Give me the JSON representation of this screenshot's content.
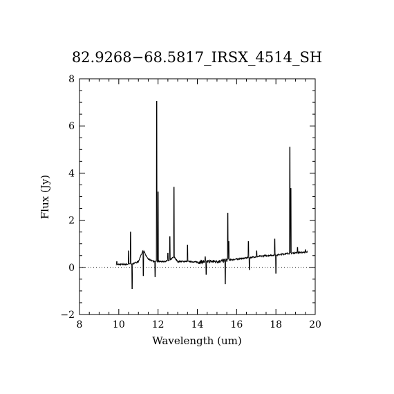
{
  "chart_data": {
    "type": "line",
    "title": "82.9268−68.5817_IRSX_4514_SH",
    "xlabel": "Wavelength (um)",
    "ylabel": "Flux (Jy)",
    "xlim": [
      8,
      20
    ],
    "ylim": [
      -2,
      8
    ],
    "x_ticks": [
      8,
      10,
      12,
      14,
      16,
      18,
      20
    ],
    "y_ticks": [
      -2,
      0,
      2,
      4,
      6,
      8
    ],
    "x_minor_step": 0.5,
    "y_minor_step": 0.5,
    "zero_line": {
      "y": 0,
      "style": "dotted"
    },
    "grid": false,
    "series": [
      {
        "continuum": [
          [
            9.87,
            0.12
          ],
          [
            10.3,
            0.13
          ],
          [
            10.7,
            0.15
          ],
          [
            11.0,
            0.25
          ],
          [
            11.15,
            0.55
          ],
          [
            11.25,
            0.75
          ],
          [
            11.35,
            0.55
          ],
          [
            11.5,
            0.35
          ],
          [
            11.8,
            0.25
          ],
          [
            12.3,
            0.25
          ],
          [
            12.6,
            0.3
          ],
          [
            12.8,
            0.45
          ],
          [
            13.0,
            0.25
          ],
          [
            13.6,
            0.25
          ],
          [
            14.0,
            0.22
          ],
          [
            14.5,
            0.25
          ],
          [
            15.0,
            0.25
          ],
          [
            15.5,
            0.3
          ],
          [
            16.0,
            0.35
          ],
          [
            16.5,
            0.4
          ],
          [
            17.0,
            0.45
          ],
          [
            17.5,
            0.5
          ],
          [
            18.0,
            0.52
          ],
          [
            18.5,
            0.58
          ],
          [
            19.0,
            0.62
          ],
          [
            19.6,
            0.65
          ]
        ],
        "spikes": [
          [
            9.9,
            0.25
          ],
          [
            10.5,
            0.7
          ],
          [
            10.6,
            1.5
          ],
          [
            10.68,
            -0.9
          ],
          [
            11.25,
            -0.35
          ],
          [
            11.85,
            -0.4
          ],
          [
            11.93,
            7.05
          ],
          [
            12.0,
            3.2
          ],
          [
            12.6,
            1.3
          ],
          [
            12.81,
            3.4
          ],
          [
            12.5,
            0.6
          ],
          [
            13.5,
            0.95
          ],
          [
            14.4,
            0.45
          ],
          [
            14.45,
            -0.3
          ],
          [
            15.42,
            -0.7
          ],
          [
            15.55,
            2.3
          ],
          [
            15.6,
            1.1
          ],
          [
            16.6,
            1.1
          ],
          [
            16.65,
            -0.1
          ],
          [
            17.02,
            0.7
          ],
          [
            17.94,
            1.2
          ],
          [
            18.0,
            -0.25
          ],
          [
            18.71,
            5.1
          ],
          [
            18.76,
            3.35
          ],
          [
            19.1,
            0.85
          ],
          [
            19.5,
            0.75
          ]
        ]
      }
    ]
  }
}
